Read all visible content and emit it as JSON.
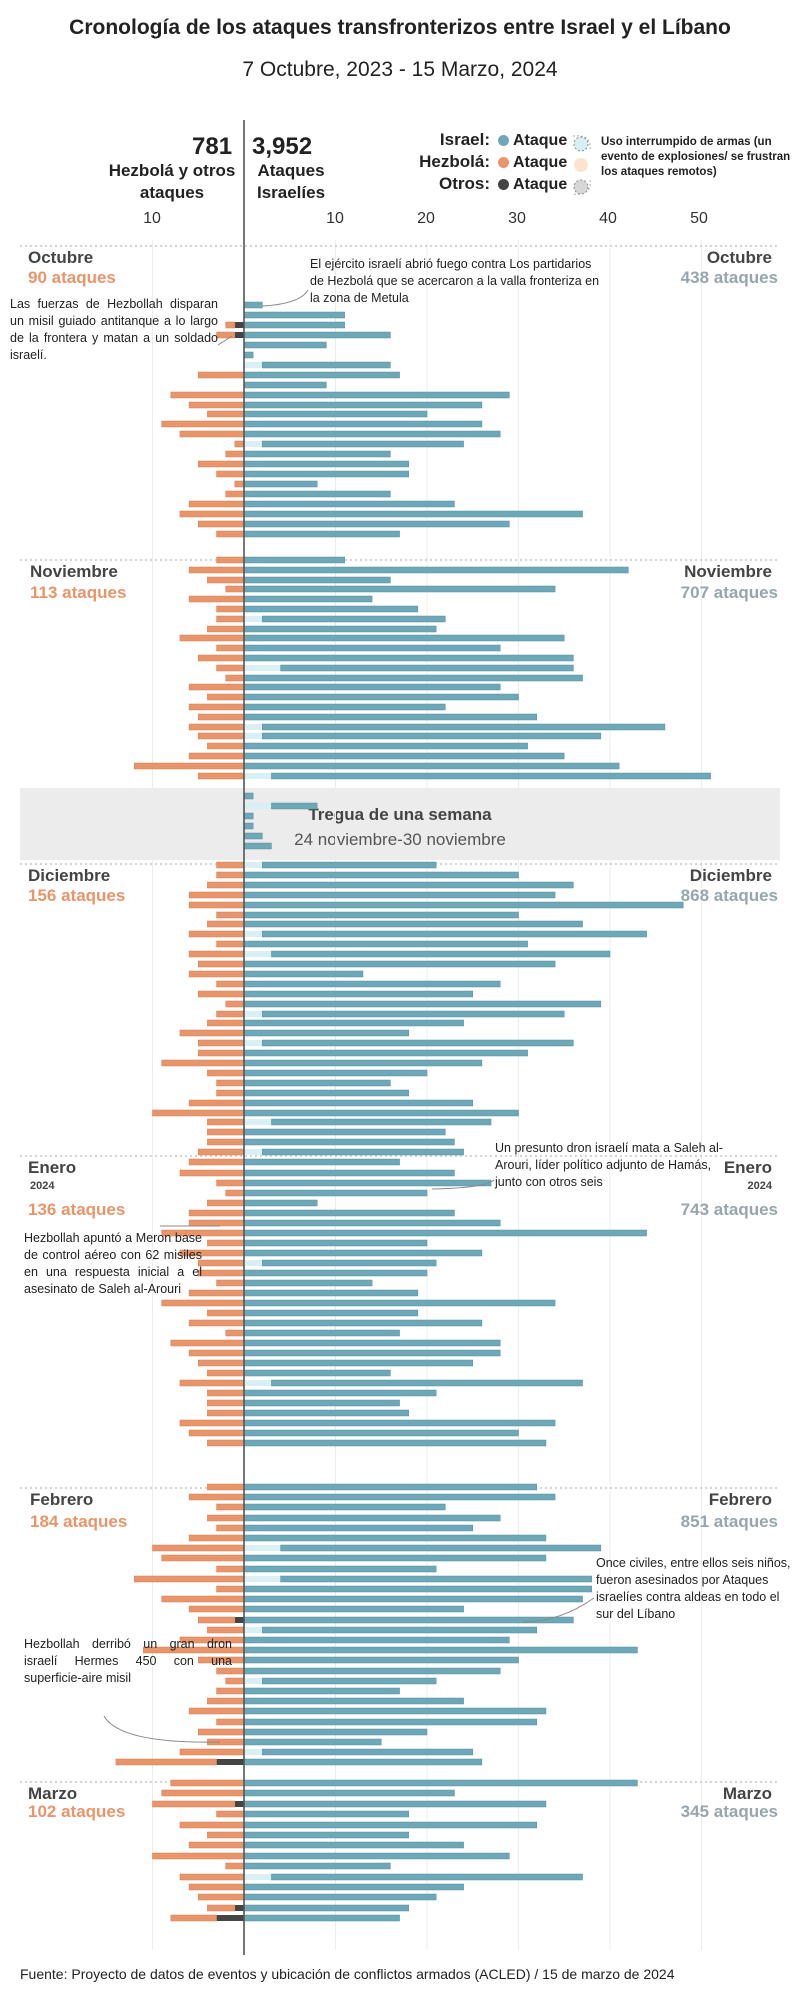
{
  "title": "Cronología de los ataques transfronterizos entre Israel y el Líbano",
  "subtitle": "7 Octubre, 2023 - 15 Marzo, 2024",
  "totals": {
    "hezbollah_count": "781",
    "hezbollah_label": "Hezbolá y otros ataques",
    "israel_count": "3,952",
    "israel_label": "Ataques Israelíes"
  },
  "legend": {
    "israel_label": "Israel:",
    "hezbollah_label": "Hezbolá:",
    "others_label": "Otros:",
    "attack_label": "Ataque",
    "note": "Uso interrumpido de armas (un evento de explosiones/ se frustran los ataques remotos)"
  },
  "axis_ticks": {
    "left": [
      "10"
    ],
    "right": [
      "10",
      "20",
      "30",
      "40",
      "50"
    ]
  },
  "colors": {
    "israel": "#6da8b8",
    "israel_interrupted": "#d8f0f3",
    "hezbollah": "#e8956b",
    "hezbollah_interrupted": "#fbe3cf",
    "others": "#444444",
    "truce_band": "#ececec"
  },
  "months": [
    {
      "name": "Octubre",
      "year": "",
      "hezbollah": "90 ataques",
      "israel": "438 ataques"
    },
    {
      "name": "Noviembre",
      "year": "",
      "hezbollah": "113 ataques",
      "israel": "707 ataques"
    },
    {
      "name": "Diciembre",
      "year": "",
      "hezbollah": "156 ataques",
      "israel": "868 ataques"
    },
    {
      "name": "Enero",
      "year": "2024",
      "hezbollah": "136 ataques",
      "israel": "743 ataques"
    },
    {
      "name": "Febrero",
      "year": "",
      "hezbollah": "184 ataques",
      "israel": "851 ataques"
    },
    {
      "name": "Marzo",
      "year": "",
      "hezbollah": "102 ataques",
      "israel": "345 ataques"
    }
  ],
  "truce": {
    "title": "Tregua de una semana",
    "dates": "24 noviembre-30 noviembre"
  },
  "annotations": {
    "a1": "El ejército israelí abrió fuego contra Los partidarios de Hezbolá que se acercaron a la valla fronteriza en la zona de Metula",
    "a2": "Las fuerzas de Hezbollah disparan un misil guiado antitanque a lo largo de la frontera y matan a un soldado israelí.",
    "a3": "Un presunto dron israelí mata a Saleh al-Arouri, líder político adjunto de Hamás, junto con otros seis",
    "a4": "Hezbollah apuntó a Meron base de control aéreo con 62 misiles en una respuesta inicial a el asesinato de Saleh al-Arouri",
    "a5": "Once civiles, entre ellos seis niños, fueron asesinados por Ataques israelíes contra aldeas en todo el sur del Líbano",
    "a6": "Hezbollah derribó un gran dron israelí Hermes 450 con una superficie-aire misil"
  },
  "source": "Fuente: Proyecto de datos de eventos y ubicación de conflictos armados (ACLED) / 15 de marzo de 2024",
  "chart_data": {
    "type": "bar",
    "orientation": "diverging horizontal (one row per day, top to bottom)",
    "x_axis_right_range": [
      0,
      50
    ],
    "x_axis_left_range": [
      0,
      10
    ],
    "series": [
      {
        "name": "Israel: Ataque",
        "side": "right",
        "values": [
          2,
          11,
          11,
          16,
          9,
          1,
          14,
          17,
          9,
          29,
          26,
          20,
          26,
          28,
          22,
          16,
          18,
          18,
          8,
          16,
          23,
          37,
          29,
          17,
          11,
          42,
          16,
          34,
          14,
          19,
          20,
          21,
          35,
          28,
          36,
          32,
          37,
          28,
          30,
          22,
          32,
          44,
          37,
          31,
          35,
          41,
          48,
          1,
          5,
          1,
          1,
          2,
          3,
          19,
          30,
          36,
          34,
          48,
          30,
          37,
          42,
          31,
          37,
          34,
          13,
          28,
          25,
          39,
          33,
          24,
          18,
          34,
          31,
          26,
          20,
          16,
          18,
          25,
          30,
          24,
          22,
          23,
          22,
          17,
          23,
          27,
          20,
          8,
          23,
          28,
          44,
          20,
          26,
          19,
          20,
          14,
          19,
          34,
          19,
          26,
          17,
          28,
          28,
          25,
          16,
          34,
          21,
          17,
          18,
          34,
          30,
          33,
          32,
          34,
          22,
          28,
          25,
          33,
          35,
          33,
          21,
          34,
          38,
          37,
          24,
          36,
          30,
          29,
          43,
          30,
          28,
          19,
          17,
          24,
          33,
          32,
          20,
          15,
          23,
          26,
          43,
          23,
          33,
          18,
          32,
          18,
          24,
          29,
          16,
          34,
          24,
          21,
          18,
          17,
          27,
          19,
          23
        ]
      },
      {
        "name": "Israel: Uso interrumpido de armas",
        "side": "right",
        "values": [
          0,
          0,
          0,
          0,
          0,
          0,
          2,
          0,
          0,
          0,
          0,
          0,
          0,
          0,
          2,
          0,
          0,
          0,
          0,
          0,
          0,
          0,
          0,
          0,
          0,
          0,
          0,
          0,
          0,
          0,
          2,
          0,
          0,
          0,
          0,
          4,
          0,
          0,
          0,
          0,
          0,
          2,
          2,
          0,
          0,
          0,
          3,
          0,
          3,
          0,
          0,
          0,
          0,
          2,
          0,
          0,
          0,
          0,
          0,
          0,
          2,
          0,
          3,
          0,
          0,
          0,
          0,
          0,
          2,
          0,
          0,
          2,
          0,
          0,
          0,
          0,
          0,
          0,
          0,
          3,
          0,
          0,
          2,
          0,
          0,
          0,
          0,
          0,
          0,
          0,
          0,
          0,
          0,
          2,
          0,
          0,
          0,
          0,
          0,
          0,
          0,
          0,
          0,
          0,
          0,
          3,
          0,
          0,
          0,
          0,
          0,
          0,
          0,
          0,
          0,
          0,
          0,
          0,
          4,
          0,
          0,
          4,
          0,
          0,
          0,
          0,
          2,
          0,
          0,
          0,
          0,
          2,
          0,
          0,
          0,
          0,
          0,
          0,
          2,
          0,
          0,
          0,
          0,
          0,
          0,
          0,
          0,
          0,
          0,
          3,
          0,
          0,
          0,
          0,
          0,
          0,
          0
        ]
      },
      {
        "name": "Hezbolá: Ataque",
        "side": "left",
        "values": [
          0,
          0,
          1,
          2,
          0,
          0,
          0,
          5,
          0,
          8,
          6,
          4,
          9,
          7,
          1,
          2,
          5,
          3,
          1,
          2,
          6,
          7,
          5,
          3,
          3,
          6,
          4,
          2,
          6,
          3,
          3,
          4,
          7,
          3,
          5,
          3,
          2,
          6,
          4,
          6,
          5,
          6,
          5,
          4,
          6,
          12,
          5,
          0,
          0,
          0,
          0,
          0,
          0,
          3,
          3,
          4,
          6,
          6,
          3,
          4,
          6,
          3,
          6,
          5,
          6,
          3,
          5,
          2,
          3,
          4,
          7,
          5,
          5,
          9,
          4,
          3,
          3,
          6,
          10,
          4,
          4,
          4,
          5,
          6,
          7,
          3,
          2,
          4,
          6,
          6,
          9,
          4,
          7,
          5,
          5,
          3,
          6,
          9,
          4,
          6,
          2,
          8,
          6,
          5,
          4,
          7,
          4,
          4,
          4,
          7,
          6,
          4,
          4,
          6,
          3,
          4,
          3,
          6,
          10,
          9,
          3,
          12,
          3,
          9,
          6,
          4,
          4,
          7,
          11,
          5,
          3,
          2,
          3,
          4,
          6,
          3,
          5,
          4,
          7,
          11,
          8,
          9,
          9,
          3,
          7,
          4,
          6,
          10,
          2,
          7,
          6,
          5,
          3,
          5,
          16,
          3,
          9
        ]
      },
      {
        "name": "Otros: Ataque",
        "side": "left",
        "values": [
          0,
          0,
          1,
          1,
          0,
          0,
          0,
          0,
          0,
          0,
          0,
          0,
          0,
          0,
          0,
          0,
          0,
          0,
          0,
          0,
          0,
          0,
          0,
          0,
          0,
          0,
          0,
          0,
          0,
          0,
          0,
          0,
          0,
          0,
          0,
          0,
          0,
          0,
          0,
          0,
          0,
          0,
          0,
          0,
          0,
          0,
          0,
          0,
          0,
          0,
          0,
          0,
          0,
          0,
          0,
          0,
          0,
          0,
          0,
          0,
          0,
          0,
          0,
          0,
          0,
          0,
          0,
          0,
          0,
          0,
          0,
          0,
          0,
          0,
          0,
          0,
          0,
          0,
          0,
          0,
          0,
          0,
          0,
          0,
          0,
          0,
          0,
          0,
          0,
          0,
          0,
          0,
          0,
          0,
          0,
          0,
          0,
          0,
          0,
          0,
          0,
          0,
          0,
          0,
          0,
          0,
          0,
          0,
          0,
          0,
          0,
          0,
          0,
          0,
          0,
          0,
          0,
          0,
          0,
          0,
          0,
          0,
          0,
          0,
          0,
          1,
          0,
          0,
          0,
          0,
          0,
          0,
          0,
          0,
          0,
          0,
          0,
          0,
          0,
          3,
          0,
          0,
          1,
          0,
          0,
          0,
          0,
          0,
          0,
          0,
          0,
          0,
          1,
          3,
          3,
          1,
          0
        ]
      }
    ]
  }
}
